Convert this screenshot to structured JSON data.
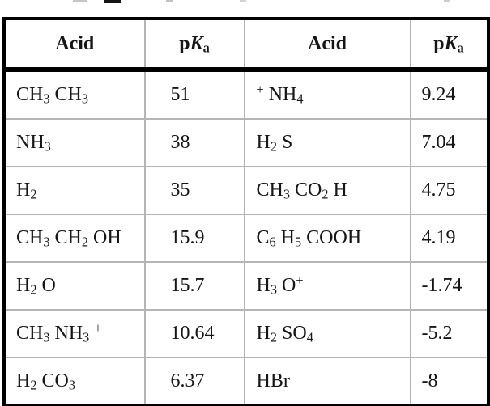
{
  "table": {
    "header": {
      "acid_label": "Acid",
      "pka_label": "p*K*_a"
    },
    "rows": [
      {
        "acid1": "CH_3 CH_3",
        "pka1": "51",
        "acid2": "^+ NH_4",
        "pka2": "9.24"
      },
      {
        "acid1": "NH_3",
        "pka1": "38",
        "acid2": "H_2 S",
        "pka2": "7.04"
      },
      {
        "acid1": "H_2",
        "pka1": "35",
        "acid2": "CH_3 CO_2 H",
        "pka2": "4.75"
      },
      {
        "acid1": "CH_3 CH_2 OH",
        "pka1": "15.9",
        "acid2": "C_6 H_5 COOH",
        "pka2": "4.19"
      },
      {
        "acid1": "H_2 O",
        "pka1": "15.7",
        "acid2": "H_3 O^+",
        "pka2": "-1.74"
      },
      {
        "acid1": "CH_3 NH_3 ^+",
        "pka1": "10.64",
        "acid2": "H_2 SO_4",
        "pka2": "-5.2"
      },
      {
        "acid1": "H_2 CO_3",
        "pka1": "6.37",
        "acid2": "HBr",
        "pka2": "-8"
      }
    ],
    "colors": {
      "outer_border": "#000000",
      "grid_line": "#b4b4b4",
      "text": "#161616",
      "background": "#ffffff"
    }
  }
}
